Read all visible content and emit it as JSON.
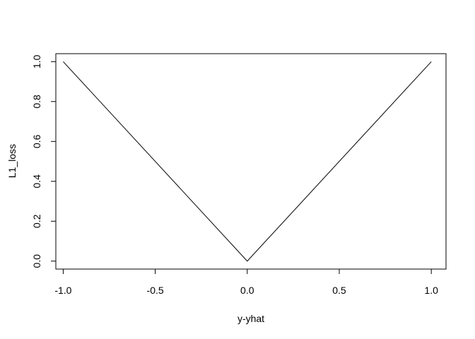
{
  "chart_data": {
    "type": "line",
    "title": "",
    "xlabel": "y-yhat",
    "ylabel": "L1_loss",
    "xlim": [
      -1.04,
      1.08
    ],
    "ylim": [
      -0.04,
      1.04
    ],
    "x_ticks": [
      -1.0,
      -0.5,
      0.0,
      0.5,
      1.0
    ],
    "x_tick_labels": [
      "-1.0",
      "-0.5",
      "0.0",
      "0.5",
      "1.0"
    ],
    "y_ticks": [
      0.0,
      0.2,
      0.4,
      0.6,
      0.8,
      1.0
    ],
    "y_tick_labels": [
      "0.0",
      "0.2",
      "0.4",
      "0.6",
      "0.8",
      "1.0"
    ],
    "grid": false,
    "line_color": "#000000",
    "series": [
      {
        "x": [
          -1.0,
          0.0,
          1.0
        ],
        "y": [
          1.0,
          0.0,
          1.0
        ]
      }
    ]
  }
}
